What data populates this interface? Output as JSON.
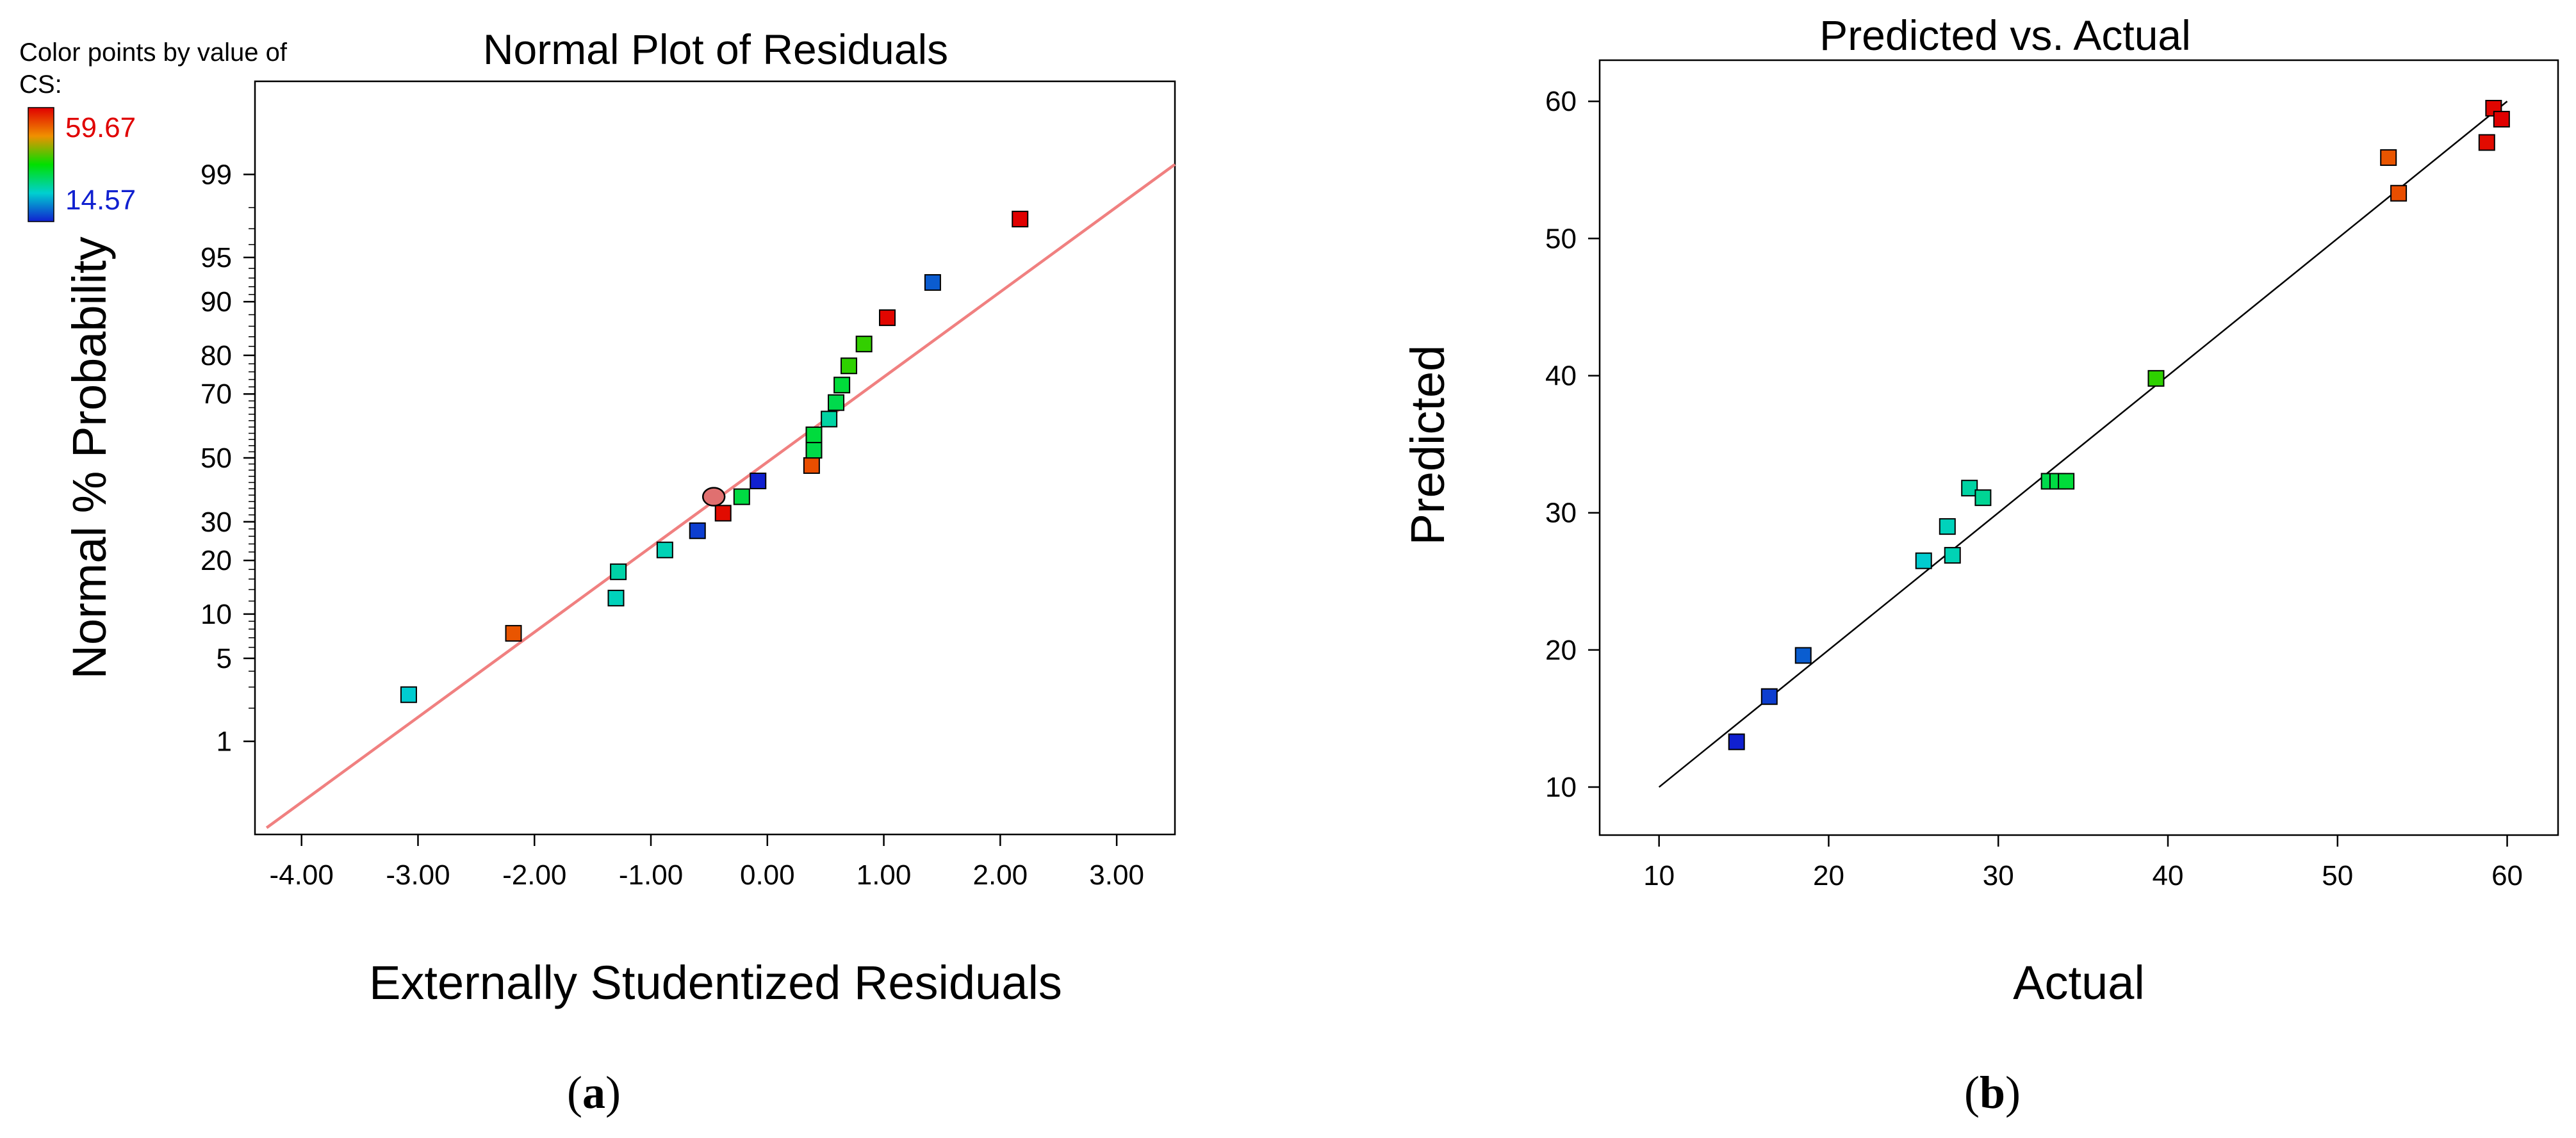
{
  "colors": {
    "high": "#e00000",
    "low": "#1020d0",
    "fit_line_a": "#f08080",
    "fit_line_b": "#000000",
    "axis": "#000000"
  },
  "chart_data": [
    {
      "id": "a",
      "type": "scatter",
      "panel_label_open": "(",
      "panel_label": "a",
      "panel_label_close": ")",
      "title": "Normal Plot of Residuals",
      "xlabel": "Externally Studentized Residuals",
      "ylabel": "Normal % Probability",
      "xlim": [
        -4.4,
        3.5
      ],
      "x_ticks": [
        -4.0,
        -3.0,
        -2.0,
        -1.0,
        0.0,
        1.0,
        2.0,
        3.0
      ],
      "x_tick_labels": [
        "-4.00",
        "-3.00",
        "-2.00",
        "-1.00",
        "0.00",
        "1.00",
        "2.00",
        "3.00"
      ],
      "y_scale": "normal-probability",
      "ylim": [
        0.1,
        99.9
      ],
      "y_ticks": [
        1,
        5,
        10,
        20,
        30,
        50,
        70,
        80,
        90,
        95,
        99
      ],
      "y_tick_labels": [
        "1",
        "5",
        "10",
        "20",
        "30",
        "50",
        "70",
        "80",
        "90",
        "95",
        "99"
      ],
      "legend": {
        "title_line1": "Color points by value of",
        "title_line2": "CS:",
        "max_label": "59.67",
        "min_label": "14.57",
        "max": 59.67,
        "min": 14.57,
        "placement": "top-left"
      },
      "reference_line": {
        "x": [
          -4.3,
          3.5
        ],
        "y": [
          0.12,
          99.2
        ]
      },
      "points": [
        {
          "x": -3.08,
          "y": 2.6,
          "cs": 25.6
        },
        {
          "x": -2.18,
          "y": 7.5,
          "cs": 53.0
        },
        {
          "x": -1.3,
          "y": 12.5,
          "cs": 27.0
        },
        {
          "x": -1.28,
          "y": 17.5,
          "cs": 28.0
        },
        {
          "x": -0.88,
          "y": 22.5,
          "cs": 27.3
        },
        {
          "x": -0.6,
          "y": 27.5,
          "cs": 16.5
        },
        {
          "x": -0.38,
          "y": 32.5,
          "cs": 58.8
        },
        {
          "x": -0.22,
          "y": 37.5,
          "cs": 33.5
        },
        {
          "x": -0.08,
          "y": 42.5,
          "cs": 14.6
        },
        {
          "x": 0.38,
          "y": 47.5,
          "cs": 53.6
        },
        {
          "x": 0.4,
          "y": 52.5,
          "cs": 33.2
        },
        {
          "x": 0.4,
          "y": 57.5,
          "cs": 33.8
        },
        {
          "x": 0.53,
          "y": 62.5,
          "cs": 28.3
        },
        {
          "x": 0.59,
          "y": 67.5,
          "cs": 33.0
        },
        {
          "x": 0.64,
          "y": 72.5,
          "cs": 34.0
        },
        {
          "x": 0.7,
          "y": 77.5,
          "cs": 39.3
        },
        {
          "x": 0.83,
          "y": 82.5,
          "cs": 39.5
        },
        {
          "x": 1.03,
          "y": 87.5,
          "cs": 59.2
        },
        {
          "x": 1.42,
          "y": 92.5,
          "cs": 18.4
        },
        {
          "x": 2.17,
          "y": 97.5,
          "cs": 59.67
        }
      ],
      "highlight_point": {
        "x": -0.46,
        "y": 37.5
      }
    },
    {
      "id": "b",
      "type": "scatter",
      "panel_label_open": "(",
      "panel_label": "b",
      "panel_label_close": ")",
      "title": "Predicted vs. Actual",
      "xlabel": "Actual",
      "ylabel": "Predicted",
      "xlim": [
        6.5,
        63
      ],
      "ylim": [
        6.5,
        63
      ],
      "x_ticks": [
        10,
        20,
        30,
        40,
        50,
        60
      ],
      "x_tick_labels": [
        "10",
        "20",
        "30",
        "40",
        "50",
        "60"
      ],
      "y_ticks": [
        10,
        20,
        30,
        40,
        50,
        60
      ],
      "y_tick_labels": [
        "10",
        "20",
        "30",
        "40",
        "50",
        "60"
      ],
      "reference_line": {
        "x": [
          10,
          60
        ],
        "y": [
          10,
          60
        ]
      },
      "points": [
        {
          "x": 14.57,
          "y": 13.3,
          "cs": 14.57
        },
        {
          "x": 16.5,
          "y": 16.6,
          "cs": 16.5
        },
        {
          "x": 18.5,
          "y": 19.6,
          "cs": 18.5
        },
        {
          "x": 25.6,
          "y": 26.5,
          "cs": 25.6
        },
        {
          "x": 27.3,
          "y": 26.9,
          "cs": 27.3
        },
        {
          "x": 27.0,
          "y": 29.0,
          "cs": 27.0
        },
        {
          "x": 28.3,
          "y": 31.8,
          "cs": 28.3
        },
        {
          "x": 29.1,
          "y": 31.1,
          "cs": 29.1
        },
        {
          "x": 33.0,
          "y": 32.3,
          "cs": 33.0
        },
        {
          "x": 33.5,
          "y": 32.3,
          "cs": 33.5
        },
        {
          "x": 34.0,
          "y": 32.3,
          "cs": 34.0
        },
        {
          "x": 39.3,
          "y": 39.8,
          "cs": 39.3
        },
        {
          "x": 53.0,
          "y": 55.9,
          "cs": 53.0
        },
        {
          "x": 53.6,
          "y": 53.3,
          "cs": 53.6
        },
        {
          "x": 58.8,
          "y": 57.0,
          "cs": 58.8
        },
        {
          "x": 59.2,
          "y": 59.5,
          "cs": 59.2
        },
        {
          "x": 59.67,
          "y": 58.7,
          "cs": 59.67
        }
      ]
    }
  ]
}
